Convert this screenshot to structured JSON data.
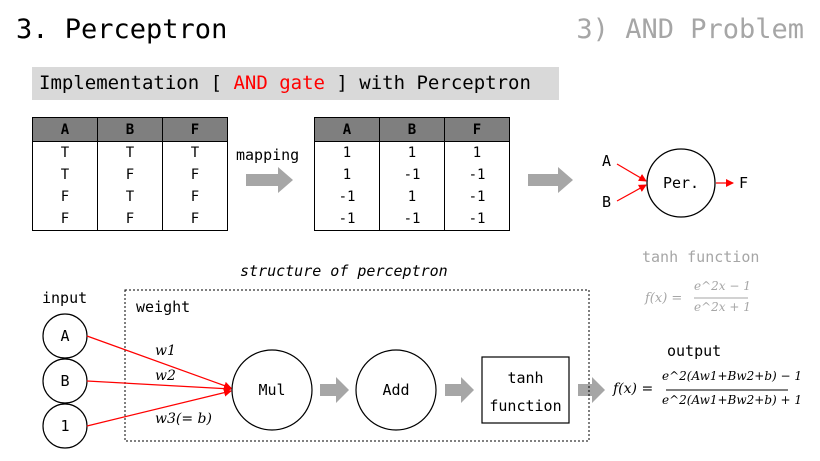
{
  "header": {
    "title": "3. Perceptron",
    "subtitle": "3) AND Problem"
  },
  "banner": {
    "prefix": "Implementation [ ",
    "highlight": "AND gate",
    "suffix": " ] with Perceptron",
    "highlight_color": "#ff0000"
  },
  "truth_table": {
    "headers": [
      "A",
      "B",
      "F"
    ],
    "rows": [
      [
        "T",
        "T",
        "T"
      ],
      [
        "T",
        "F",
        "F"
      ],
      [
        "F",
        "T",
        "F"
      ],
      [
        "F",
        "F",
        "F"
      ]
    ]
  },
  "mapping_label": "mapping",
  "mapped_table": {
    "headers": [
      "A",
      "B",
      "F"
    ],
    "rows": [
      [
        "1",
        "1",
        "1"
      ],
      [
        "1",
        "-1",
        "-1"
      ],
      [
        "-1",
        "1",
        "-1"
      ],
      [
        "-1",
        "-1",
        "-1"
      ]
    ]
  },
  "perceptron_summary": {
    "input_a": "A",
    "input_b": "B",
    "node": "Per.",
    "output": "F"
  },
  "tanh_info": {
    "title": "tanh function",
    "formula_lhs": "f(x) =",
    "numerator": "e^2x − 1",
    "denominator": "e^2x + 1"
  },
  "structure": {
    "caption": "structure of perceptron",
    "input_label": "input",
    "weight_label": "weight",
    "inputs": [
      "A",
      "B",
      "1"
    ],
    "weights": [
      "w1",
      "w2",
      "w3(= b)"
    ],
    "mul": "Mul",
    "add": "Add",
    "tanh_line1": "tanh",
    "tanh_line2": "function",
    "output_label": "output",
    "output_lhs": "f(x) =",
    "output_numerator": "e^2(Aw1+Bw2+b) − 1",
    "output_denominator": "e^2(Aw1+Bw2+b) + 1"
  },
  "colors": {
    "arrow_gray": "#a6a6a6",
    "arrow_red": "#ff0000",
    "banner_bg": "#d9d9d9",
    "header_gray": "#7f7f7f"
  }
}
